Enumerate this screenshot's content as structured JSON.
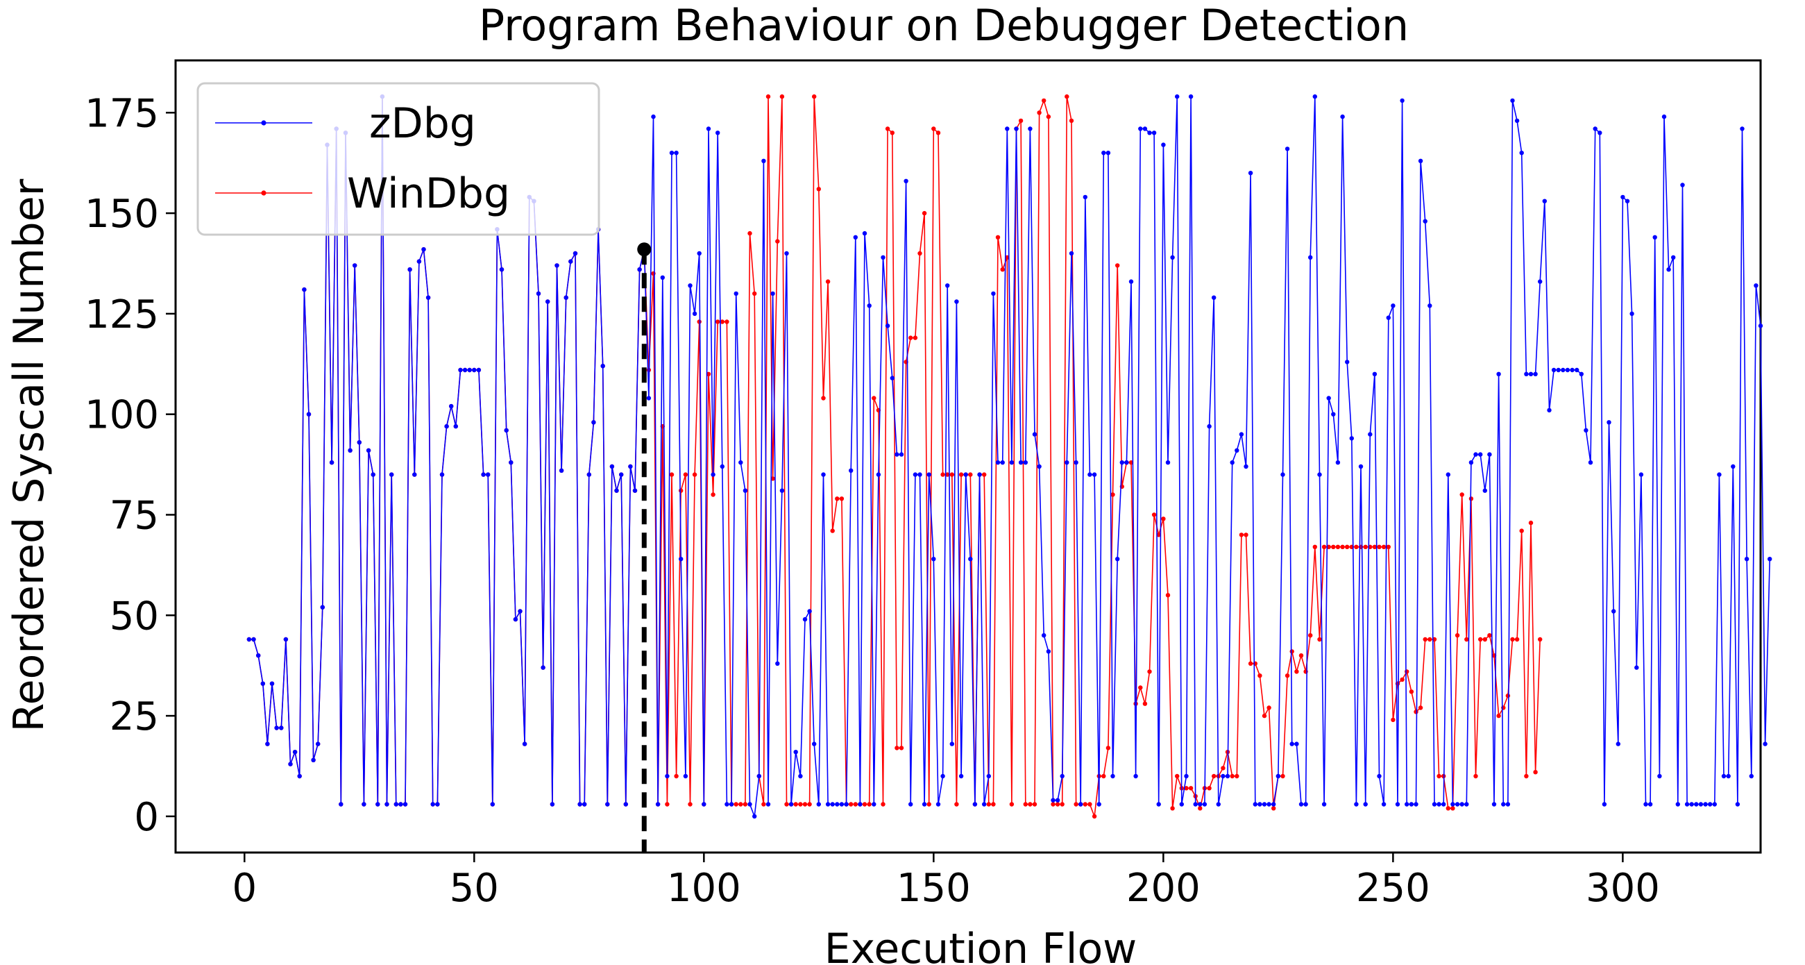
{
  "chart_data": {
    "type": "line",
    "title": "Program Behaviour on Debugger Detection",
    "xlabel": "Execution Flow",
    "ylabel": "Reordered Syscall Number",
    "xlim": [
      -15,
      330
    ],
    "ylim": [
      -9,
      188
    ],
    "xticks": [
      0,
      50,
      100,
      150,
      200,
      250,
      300
    ],
    "yticks": [
      0,
      25,
      50,
      75,
      100,
      125,
      150,
      175
    ],
    "grid": false,
    "legend": "top-left",
    "colors": {
      "zDbg": "#0000ff",
      "WinDbg": "#ff0000",
      "marker": "#000000"
    },
    "detection_point": {
      "x": 87,
      "y": 141
    },
    "series": [
      {
        "name": "zDbg",
        "x_start": 1,
        "values": [
          44,
          44,
          40,
          33,
          18,
          33,
          22,
          22,
          44,
          13,
          16,
          10,
          131,
          100,
          14,
          18,
          52,
          167,
          88,
          171,
          3,
          170,
          91,
          137,
          93,
          3,
          91,
          85,
          3,
          179,
          3,
          85,
          3,
          3,
          3,
          136,
          85,
          138,
          141,
          129,
          3,
          3,
          85,
          97,
          102,
          97,
          111,
          111,
          111,
          111,
          111,
          85,
          85,
          3,
          146,
          136,
          96,
          88,
          49,
          51,
          18,
          154,
          153,
          130,
          37,
          128,
          3,
          137,
          86,
          129,
          138,
          140,
          3,
          3,
          85,
          98,
          146,
          112,
          3,
          87,
          81,
          85,
          3,
          87,
          81,
          136,
          141,
          104,
          174,
          3,
          134,
          10,
          165,
          165,
          64,
          10,
          132,
          125,
          140,
          3,
          171,
          85,
          170,
          87,
          3,
          3,
          130,
          88,
          81,
          3,
          0,
          10,
          163,
          3,
          130,
          38,
          81,
          140,
          3,
          16,
          10,
          49,
          51,
          18,
          3,
          85,
          3,
          3,
          3,
          3,
          3,
          86,
          144,
          3,
          145,
          127,
          3,
          85,
          139,
          122,
          109,
          90,
          90,
          158,
          3,
          85,
          85,
          3,
          85,
          64,
          3,
          10,
          132,
          18,
          128,
          10,
          85,
          64,
          3,
          85,
          3,
          10,
          130,
          88,
          88,
          171,
          88,
          171,
          88,
          88,
          171,
          95,
          87,
          45,
          41,
          4,
          4,
          10,
          88,
          140,
          88,
          3,
          154,
          85,
          85,
          3,
          165,
          165,
          10,
          64,
          88,
          88,
          133,
          10,
          171,
          171,
          170,
          170,
          3,
          167,
          88,
          139,
          179,
          3,
          10,
          179,
          3,
          3,
          3,
          97,
          129,
          3,
          10,
          10,
          88,
          91,
          95,
          87,
          160,
          3,
          3,
          3,
          3,
          3,
          10,
          85,
          166,
          18,
          18,
          3,
          3,
          139,
          179,
          85,
          3,
          104,
          100,
          88,
          174,
          113,
          94,
          3,
          87,
          3,
          95,
          110,
          10,
          3,
          124,
          127,
          3,
          178,
          3,
          3,
          3,
          163,
          148,
          127,
          3,
          3,
          3,
          85,
          3,
          3,
          3,
          3,
          88,
          90,
          90,
          81,
          90,
          3,
          110,
          3,
          3,
          178,
          173,
          165,
          110,
          110,
          110,
          133,
          153,
          101,
          111,
          111,
          111,
          111,
          111,
          111,
          110,
          96,
          88,
          171,
          170,
          3,
          98,
          51,
          18,
          154,
          153,
          125,
          37,
          85,
          3,
          3,
          144,
          10,
          174,
          136,
          139,
          3,
          157,
          3,
          3,
          3,
          3,
          3,
          3,
          3,
          85,
          10,
          10,
          87,
          3,
          171,
          64,
          10,
          132,
          122,
          18,
          64
        ]
      },
      {
        "name": "WinDbg",
        "x_start": 1,
        "values": [
          44,
          44,
          40,
          33,
          18,
          33,
          22,
          22,
          44,
          13,
          16,
          10,
          131,
          100,
          14,
          18,
          52,
          167,
          88,
          171,
          3,
          170,
          91,
          137,
          93,
          3,
          91,
          85,
          3,
          179,
          3,
          85,
          3,
          3,
          3,
          136,
          85,
          138,
          141,
          129,
          3,
          3,
          85,
          97,
          102,
          97,
          111,
          111,
          111,
          111,
          111,
          85,
          85,
          3,
          146,
          136,
          96,
          88,
          49,
          51,
          18,
          154,
          153,
          130,
          37,
          128,
          3,
          137,
          86,
          129,
          138,
          140,
          3,
          3,
          85,
          98,
          146,
          112,
          3,
          87,
          81,
          85,
          3,
          87,
          81,
          136,
          141,
          111,
          135,
          3,
          97,
          3,
          85,
          10,
          81,
          85,
          3,
          85,
          123,
          3,
          110,
          80,
          123,
          123,
          123,
          3,
          3,
          3,
          3,
          145,
          130,
          10,
          3,
          179,
          84,
          143,
          179,
          3,
          3,
          3,
          3,
          3,
          3,
          179,
          156,
          104,
          133,
          71,
          79,
          79,
          3,
          3,
          3,
          3,
          3,
          3,
          104,
          101,
          3,
          171,
          170,
          17,
          17,
          113,
          119,
          119,
          140,
          150,
          3,
          171,
          170,
          85,
          85,
          85,
          3,
          85,
          85,
          85,
          3,
          85,
          85,
          3,
          3,
          144,
          136,
          139,
          3,
          171,
          173,
          3,
          3,
          3,
          175,
          178,
          174,
          3,
          3,
          3,
          179,
          173,
          3,
          3,
          3,
          3,
          0,
          10,
          10,
          17,
          80,
          137,
          82,
          88,
          88,
          28,
          32,
          28,
          36,
          75,
          70,
          74,
          55,
          2,
          10,
          7,
          7,
          7,
          5,
          2,
          7,
          7,
          10,
          10,
          12,
          16,
          10,
          10,
          70,
          70,
          38,
          38,
          35,
          25,
          27,
          2,
          10,
          10,
          35,
          41,
          36,
          40,
          36,
          45,
          67,
          44,
          67,
          67,
          67,
          67,
          67,
          67,
          67,
          67,
          67,
          67,
          67,
          67,
          67,
          67,
          67,
          24,
          33,
          34,
          36,
          31,
          26,
          27,
          44,
          44,
          44,
          10,
          10,
          2,
          2,
          45,
          80,
          44,
          79,
          10,
          44,
          44,
          45,
          40,
          25,
          27,
          30,
          44,
          44,
          71,
          10,
          73,
          11,
          44
        ]
      }
    ]
  }
}
